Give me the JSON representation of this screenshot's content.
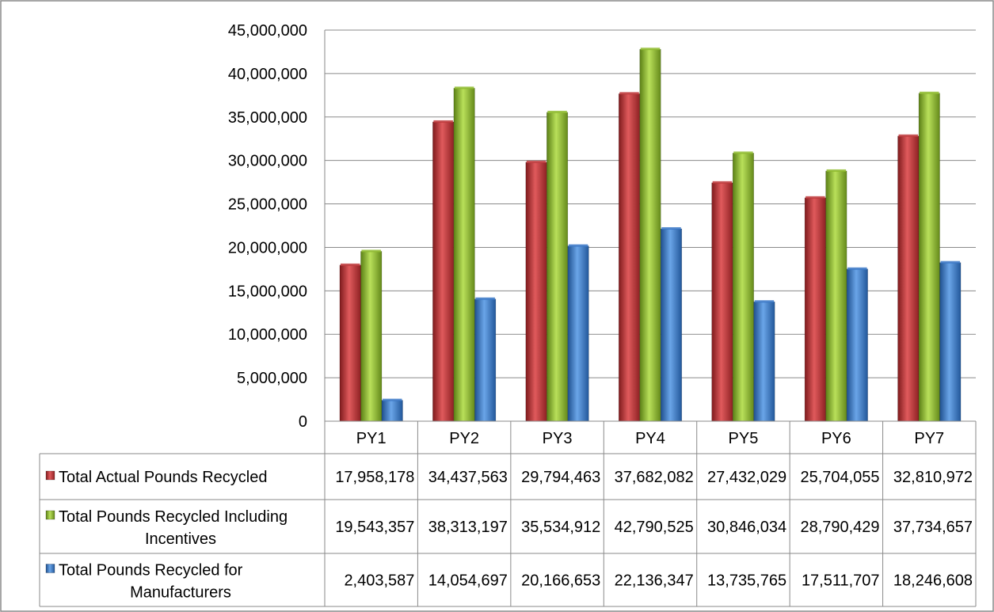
{
  "chart_data": {
    "type": "bar",
    "categories": [
      "PY1",
      "PY2",
      "PY3",
      "PY4",
      "PY5",
      "PY6",
      "PY7"
    ],
    "ylim": [
      0,
      45000000
    ],
    "ytick_labels": [
      "0",
      "5,000,000",
      "10,000,000",
      "15,000,000",
      "20,000,000",
      "25,000,000",
      "30,000,000",
      "35,000,000",
      "40,000,000",
      "45,000,000"
    ],
    "grid": true,
    "legend_placement": "data table (left of rows)",
    "series": [
      {
        "name_lines": [
          "Total Actual Pounds Recycled"
        ],
        "color": "#c0393c",
        "values": [
          17958178,
          34437563,
          29794463,
          37682082,
          27432029,
          25704055,
          32810972
        ],
        "labels": [
          "17,958,178",
          "34,437,563",
          "29,794,463",
          "37,682,082",
          "27,432,029",
          "25,704,055",
          "32,810,972"
        ]
      },
      {
        "name_lines": [
          "Total Pounds Recycled Including",
          "Incentives"
        ],
        "color": "#8fbc2e",
        "values": [
          19543357,
          38313197,
          35534912,
          42790525,
          30846034,
          28790429,
          37734657
        ],
        "labels": [
          "19,543,357",
          "38,313,197",
          "35,534,912",
          "42,790,525",
          "30,846,034",
          "28,790,429",
          "37,734,657"
        ]
      },
      {
        "name_lines": [
          "Total Pounds Recycled for",
          "Manufacturers"
        ],
        "color": "#3a78c8",
        "values": [
          2403587,
          14054697,
          20166653,
          22136347,
          13735765,
          17511707,
          18246608
        ],
        "labels": [
          "2,403,587",
          "14,054,697",
          "20,166,653",
          "22,136,347",
          "13,735,765",
          "17,511,707",
          "18,246,608"
        ]
      }
    ]
  }
}
